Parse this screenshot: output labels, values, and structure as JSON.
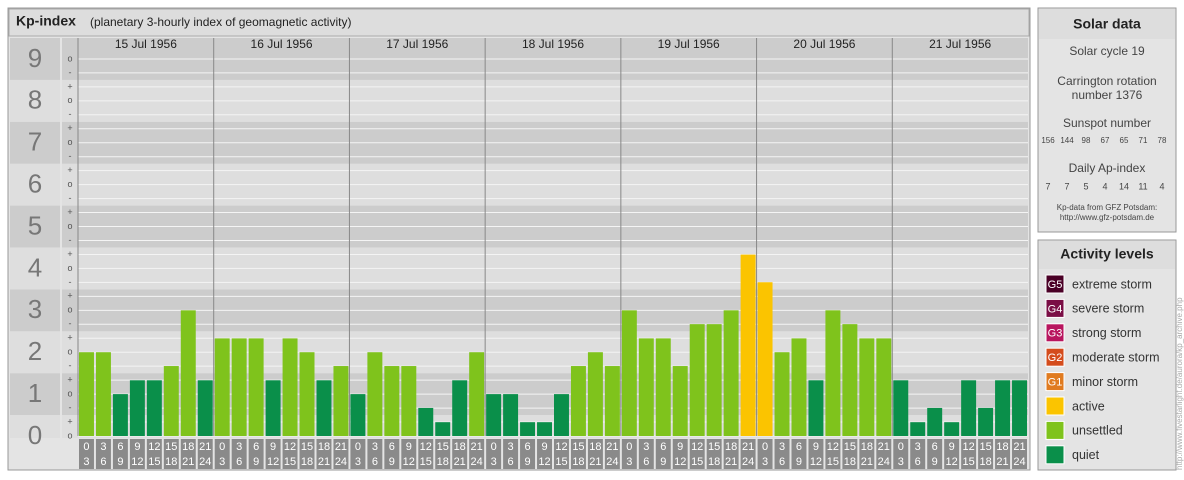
{
  "header": {
    "title": "Kp-index",
    "subtitle": "(planetary 3-hourly index of geomagnetic activity)"
  },
  "chart_data": {
    "type": "bar",
    "days": [
      "15 Jul 1956",
      "16 Jul 1956",
      "17 Jul 1956",
      "18 Jul 1956",
      "19 Jul 1956",
      "20 Jul 1956",
      "21 Jul 1956"
    ],
    "hours": [
      [
        "0",
        "3"
      ],
      [
        "3",
        "6"
      ],
      [
        "6",
        "9"
      ],
      [
        "9",
        "12"
      ],
      [
        "12",
        "15"
      ],
      [
        "15",
        "18"
      ],
      [
        "18",
        "21"
      ],
      [
        "21",
        "24"
      ]
    ],
    "values": [
      2,
      2,
      1,
      1.33,
      1.33,
      1.67,
      3,
      1.33,
      2.33,
      2.33,
      2.33,
      1.33,
      2.33,
      2,
      1.33,
      1.67,
      1,
      2,
      1.67,
      1.67,
      0.67,
      0.33,
      1.33,
      2,
      1,
      1,
      0.33,
      0.33,
      1,
      1.67,
      2,
      1.67,
      3,
      2.33,
      2.33,
      1.67,
      2.67,
      2.67,
      3,
      4.33,
      3.67,
      2,
      2.33,
      1.33,
      3,
      2.67,
      2.33,
      2.33,
      1.33,
      0.33,
      0.67,
      0.33,
      1.33,
      0.67,
      1.33,
      1.33
    ],
    "colors": [
      "#7fc31c",
      "#7fc31c",
      "#0a8f4a",
      "#0a8f4a",
      "#0a8f4a",
      "#7fc31c",
      "#7fc31c",
      "#0a8f4a",
      "#7fc31c",
      "#7fc31c",
      "#7fc31c",
      "#0a8f4a",
      "#7fc31c",
      "#7fc31c",
      "#0a8f4a",
      "#7fc31c",
      "#0a8f4a",
      "#7fc31c",
      "#7fc31c",
      "#7fc31c",
      "#0a8f4a",
      "#0a8f4a",
      "#0a8f4a",
      "#7fc31c",
      "#0a8f4a",
      "#0a8f4a",
      "#0a8f4a",
      "#0a8f4a",
      "#0a8f4a",
      "#7fc31c",
      "#7fc31c",
      "#7fc31c",
      "#7fc31c",
      "#7fc31c",
      "#7fc31c",
      "#7fc31c",
      "#7fc31c",
      "#7fc31c",
      "#7fc31c",
      "#fbc400",
      "#fbc400",
      "#7fc31c",
      "#7fc31c",
      "#0a8f4a",
      "#7fc31c",
      "#7fc31c",
      "#7fc31c",
      "#7fc31c",
      "#0a8f4a",
      "#0a8f4a",
      "#0a8f4a",
      "#0a8f4a",
      "#0a8f4a",
      "#0a8f4a",
      "#0a8f4a",
      "#0a8f4a"
    ],
    "ylim": [
      0,
      9.5
    ],
    "yticks": [
      0,
      1,
      2,
      3,
      4,
      5,
      6,
      7,
      8,
      9
    ],
    "minor_ticks": {
      "minus": "-",
      "zero": "o",
      "plus": "+"
    }
  },
  "solar": {
    "title": "Solar data",
    "cycle": "Solar cycle 19",
    "carrington": [
      "Carrington rotation",
      "number 1376"
    ],
    "sunspot_title": "Sunspot number",
    "sunspot_numbers": [
      156,
      144,
      98,
      67,
      65,
      71,
      78
    ],
    "ap_title": "Daily Ap-index",
    "ap_values": [
      7,
      7,
      5,
      4,
      14,
      11,
      4
    ],
    "source": [
      "Kp-data from GFZ Potsdam:",
      "http://www.gfz-potsdam.de"
    ]
  },
  "activity": {
    "title": "Activity levels",
    "items": [
      {
        "badge": "G5",
        "label": "extreme storm",
        "color": "#4a0026"
      },
      {
        "badge": "G4",
        "label": "severe storm",
        "color": "#7a0e45"
      },
      {
        "badge": "G3",
        "label": "strong storm",
        "color": "#b8155e"
      },
      {
        "badge": "G2",
        "label": "moderate storm",
        "color": "#d44c1c"
      },
      {
        "badge": "G1",
        "label": "minor storm",
        "color": "#e07b20"
      },
      {
        "label": "active",
        "color": "#fbc400"
      },
      {
        "label": "unsettled",
        "color": "#7fc31c"
      },
      {
        "label": "quiet",
        "color": "#0a8f4a"
      }
    ]
  },
  "credit": "http://www.fivestarlight.de/aurora/kp_archive.php"
}
